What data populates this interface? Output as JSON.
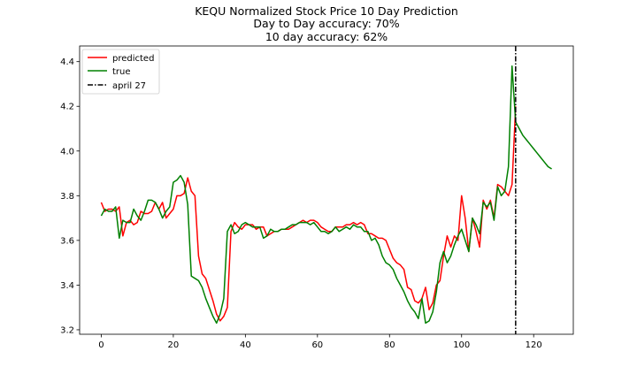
{
  "chart_data": {
    "type": "line",
    "title_lines": [
      "KEQU Normalized Stock Price 10 Day Prediction",
      "Day to Day accuracy: 70%",
      "10 day accuracy: 62%"
    ],
    "xlabel": "",
    "ylabel": "",
    "xlim": [
      -6,
      131
    ],
    "ylim": [
      3.18,
      4.47
    ],
    "xticks": [
      0,
      20,
      40,
      60,
      80,
      100,
      120
    ],
    "yticks": [
      3.2,
      3.4,
      3.6,
      3.8,
      4.0,
      4.2,
      4.4
    ],
    "grid": false,
    "legend_position": "upper-left",
    "series": [
      {
        "name": "predicted",
        "color": "#ff0000",
        "style": "solid",
        "x": [
          0,
          1,
          2,
          3,
          4,
          5,
          6,
          7,
          8,
          9,
          10,
          11,
          12,
          13,
          14,
          15,
          16,
          17,
          18,
          19,
          20,
          21,
          22,
          23,
          24,
          25,
          26,
          27,
          28,
          29,
          30,
          31,
          32,
          33,
          34,
          35,
          36,
          37,
          38,
          39,
          40,
          41,
          42,
          43,
          44,
          45,
          46,
          47,
          48,
          49,
          50,
          51,
          52,
          53,
          54,
          55,
          56,
          57,
          58,
          59,
          60,
          61,
          62,
          63,
          64,
          65,
          66,
          67,
          68,
          69,
          70,
          71,
          72,
          73,
          74,
          75,
          76,
          77,
          78,
          79,
          80,
          81,
          82,
          83,
          84,
          85,
          86,
          87,
          88,
          89,
          90,
          91,
          92,
          93,
          94,
          95,
          96,
          97,
          98,
          99,
          100,
          101,
          102,
          103,
          104,
          105,
          106,
          107,
          108,
          109,
          110,
          111,
          112,
          113,
          114,
          115
        ],
        "y": [
          3.77,
          3.73,
          3.74,
          3.74,
          3.73,
          3.75,
          3.62,
          3.68,
          3.69,
          3.67,
          3.68,
          3.73,
          3.72,
          3.72,
          3.73,
          3.77,
          3.74,
          3.77,
          3.7,
          3.72,
          3.74,
          3.8,
          3.8,
          3.81,
          3.88,
          3.82,
          3.8,
          3.53,
          3.45,
          3.43,
          3.38,
          3.33,
          3.27,
          3.24,
          3.26,
          3.3,
          3.64,
          3.68,
          3.66,
          3.65,
          3.67,
          3.67,
          3.67,
          3.65,
          3.66,
          3.66,
          3.62,
          3.63,
          3.64,
          3.64,
          3.65,
          3.65,
          3.65,
          3.66,
          3.67,
          3.68,
          3.69,
          3.68,
          3.69,
          3.69,
          3.68,
          3.66,
          3.65,
          3.64,
          3.64,
          3.66,
          3.66,
          3.66,
          3.67,
          3.67,
          3.68,
          3.67,
          3.68,
          3.67,
          3.63,
          3.63,
          3.62,
          3.61,
          3.61,
          3.6,
          3.56,
          3.52,
          3.5,
          3.49,
          3.47,
          3.39,
          3.38,
          3.33,
          3.32,
          3.34,
          3.39,
          3.29,
          3.32,
          3.4,
          3.42,
          3.53,
          3.62,
          3.57,
          3.62,
          3.6,
          3.8,
          3.7,
          3.55,
          3.7,
          3.64,
          3.57,
          3.78,
          3.74,
          3.78,
          3.7,
          3.85,
          3.84,
          3.82,
          3.8,
          3.85,
          4.2
        ]
      },
      {
        "name": "true",
        "color": "#008000",
        "style": "solid",
        "x": [
          0,
          1,
          2,
          3,
          4,
          5,
          6,
          7,
          8,
          9,
          10,
          11,
          12,
          13,
          14,
          15,
          16,
          17,
          18,
          19,
          20,
          21,
          22,
          23,
          24,
          25,
          26,
          27,
          28,
          29,
          30,
          31,
          32,
          33,
          34,
          35,
          36,
          37,
          38,
          39,
          40,
          41,
          42,
          43,
          44,
          45,
          46,
          47,
          48,
          49,
          50,
          51,
          52,
          53,
          54,
          55,
          56,
          57,
          58,
          59,
          60,
          61,
          62,
          63,
          64,
          65,
          66,
          67,
          68,
          69,
          70,
          71,
          72,
          73,
          74,
          75,
          76,
          77,
          78,
          79,
          80,
          81,
          82,
          83,
          84,
          85,
          86,
          87,
          88,
          89,
          90,
          91,
          92,
          93,
          94,
          95,
          96,
          97,
          98,
          99,
          100,
          101,
          102,
          103,
          104,
          105,
          106,
          107,
          108,
          109,
          110,
          111,
          112,
          113,
          114,
          115,
          116,
          117,
          118,
          119,
          120,
          121,
          122,
          123,
          124,
          125
        ],
        "y": [
          3.71,
          3.74,
          3.73,
          3.73,
          3.75,
          3.61,
          3.69,
          3.68,
          3.68,
          3.74,
          3.71,
          3.69,
          3.73,
          3.78,
          3.78,
          3.77,
          3.74,
          3.7,
          3.73,
          3.75,
          3.86,
          3.87,
          3.89,
          3.86,
          3.76,
          3.44,
          3.43,
          3.42,
          3.39,
          3.34,
          3.3,
          3.26,
          3.23,
          3.27,
          3.34,
          3.64,
          3.67,
          3.63,
          3.64,
          3.67,
          3.68,
          3.67,
          3.66,
          3.66,
          3.66,
          3.61,
          3.62,
          3.65,
          3.64,
          3.64,
          3.65,
          3.65,
          3.66,
          3.67,
          3.67,
          3.68,
          3.68,
          3.68,
          3.67,
          3.68,
          3.66,
          3.64,
          3.64,
          3.63,
          3.64,
          3.66,
          3.64,
          3.65,
          3.66,
          3.65,
          3.67,
          3.66,
          3.66,
          3.64,
          3.64,
          3.6,
          3.61,
          3.58,
          3.53,
          3.5,
          3.49,
          3.47,
          3.43,
          3.4,
          3.37,
          3.33,
          3.3,
          3.28,
          3.25,
          3.34,
          3.23,
          3.24,
          3.28,
          3.37,
          3.5,
          3.55,
          3.5,
          3.53,
          3.58,
          3.62,
          3.65,
          3.6,
          3.55,
          3.7,
          3.67,
          3.63,
          3.77,
          3.75,
          3.77,
          3.69,
          3.84,
          3.8,
          3.82,
          3.93,
          4.38,
          4.13,
          4.1,
          4.07,
          4.05,
          4.03,
          4.01,
          3.99,
          3.97,
          3.95,
          3.93,
          3.92
        ]
      }
    ],
    "vline": {
      "name": "april 27",
      "x": 115,
      "color": "#000000",
      "style": "dashdot"
    }
  }
}
